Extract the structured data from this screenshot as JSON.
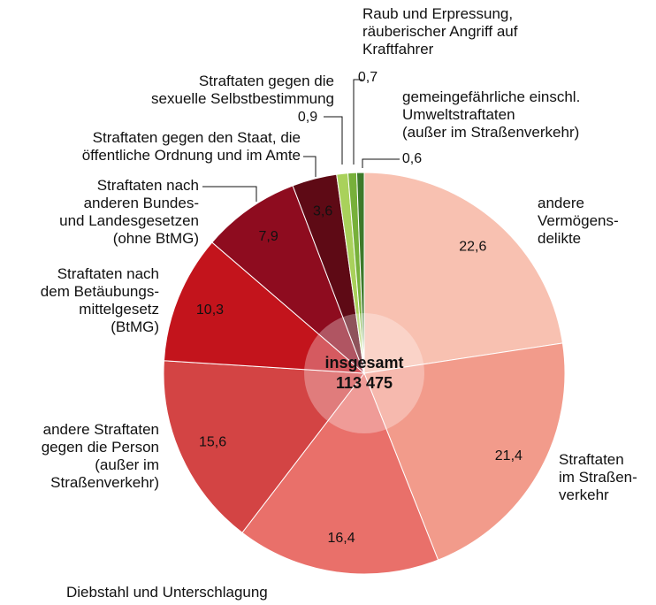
{
  "chart_data": {
    "type": "pie",
    "categories": [
      "andere\nVermögens-\ndelikte",
      "Straftaten\nim Straßen-\nverkehr",
      "Diebstahl und Unterschlagung",
      "andere Straftaten\ngegen die Person\n(außer im\nStraßenverkehr)",
      "Straftaten nach\ndem Betäubungs-\nmittelgesetz\n(BtMG)",
      "Straftaten nach\nanderen Bundes-\nund Landesgesetzen\n(ohne BtMG)",
      "Straftaten gegen den Staat, die\nöffentliche Ordnung und im Amte",
      "Straftaten gegen die\nsexuelle Selbstbestimmung",
      "Raub und Erpressung,\nräuberischer Angriff auf\nKraftfahrer",
      "gemeingefährliche einschl.\nUmweltstraftaten\n(außer im Straßenverkehr)"
    ],
    "values": [
      22.6,
      21.4,
      16.4,
      15.6,
      10.3,
      7.9,
      3.6,
      0.9,
      0.7,
      0.6
    ],
    "value_labels": [
      "22,6",
      "21,4",
      "16,4",
      "15,6",
      "10,3",
      "7,9",
      "3,6",
      "0,9",
      "0,7",
      "0,6"
    ],
    "colors": [
      "#f8c1b1",
      "#f29b8b",
      "#e9706a",
      "#d34444",
      "#c3141c",
      "#8e0c1f",
      "#5e0a15",
      "#a9d15b",
      "#77b03a",
      "#3d7a2a"
    ],
    "center_title": "insgesamt",
    "total": 113475,
    "total_label": "113 475"
  }
}
